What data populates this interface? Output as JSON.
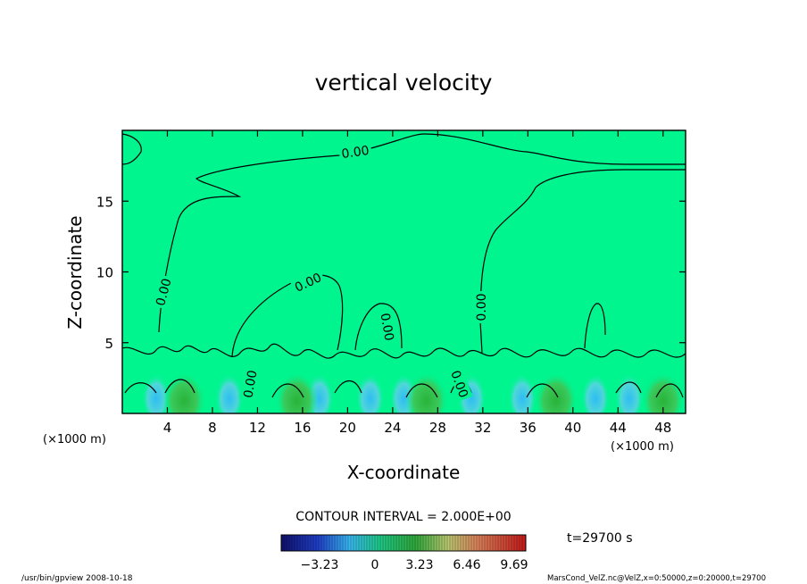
{
  "chart_data": {
    "type": "heatmap",
    "title": "vertical velocity",
    "xlabel": "X-coordinate",
    "ylabel": "Z-coordinate",
    "x_unit": "(×1000 m)",
    "y_unit": "(×1000 m)",
    "xlim": [
      0,
      50
    ],
    "ylim": [
      0,
      20
    ],
    "x_ticks": [
      4,
      8,
      12,
      16,
      20,
      24,
      28,
      32,
      36,
      40,
      44,
      48
    ],
    "y_ticks": [
      5,
      10,
      15
    ],
    "contour_labels": [
      "0.00",
      "0.00",
      "0.00",
      "0.00",
      "0.00",
      "0.00",
      "0.00"
    ],
    "contour_interval_text": "CONTOUR INTERVAL = 2.000E+00",
    "colorbar_ticks": [
      "−3.23",
      "0",
      "3.23",
      "6.46",
      "9.69"
    ],
    "time_label": "t=29700 s",
    "footer_left": "/usr/bin/gpview   2008-10-18",
    "footer_right": "MarsCond_VelZ.nc@VelZ,x=0:50000,z=0:20000,t=29700",
    "background_color": "#00f58f",
    "colors": {
      "positive": "#29b33a",
      "negative": "#2fbcf3"
    }
  }
}
